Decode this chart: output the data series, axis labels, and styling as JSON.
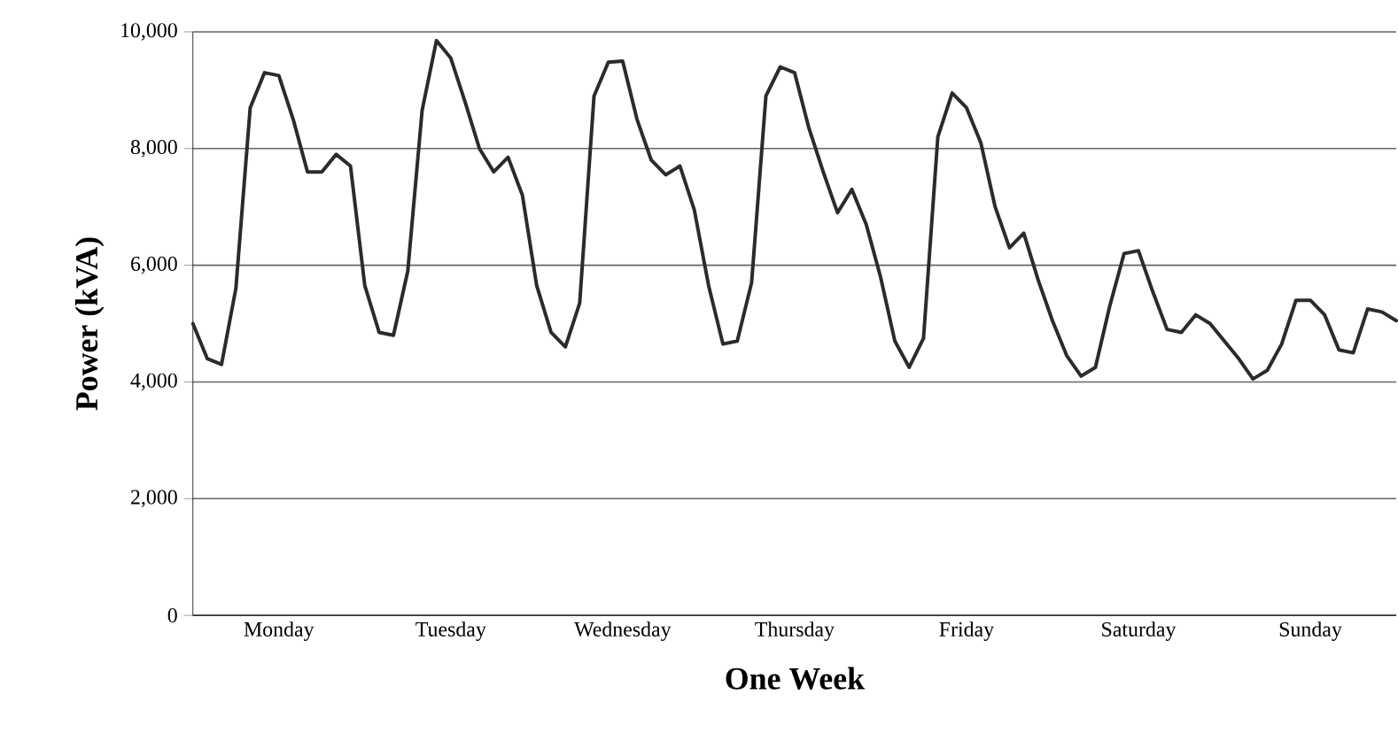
{
  "chart_data": {
    "type": "line",
    "xlabel": "One Week",
    "ylabel": "Power (kVA)",
    "categories": [
      null,
      null,
      null,
      null,
      null,
      null,
      "Monday",
      null,
      null,
      null,
      null,
      null,
      null,
      null,
      null,
      null,
      null,
      null,
      "Tuesday",
      null,
      null,
      null,
      null,
      null,
      null,
      null,
      null,
      null,
      null,
      null,
      "Wednesday",
      null,
      null,
      null,
      null,
      null,
      null,
      null,
      null,
      null,
      null,
      null,
      "Thursday",
      null,
      null,
      null,
      null,
      null,
      null,
      null,
      null,
      null,
      null,
      null,
      "Friday",
      null,
      null,
      null,
      null,
      null,
      null,
      null,
      null,
      null,
      null,
      null,
      "Saturday",
      null,
      null,
      null,
      null,
      null,
      null,
      null,
      null,
      null,
      null,
      null,
      "Sunday",
      null,
      null,
      null,
      null,
      null,
      null
    ],
    "ylim": [
      0,
      10000
    ],
    "yticks": [
      0,
      {
        "value": 2000,
        "label": "2,000"
      },
      {
        "value": 4000,
        "label": "4,000"
      },
      {
        "value": 6000,
        "label": "6,000"
      },
      {
        "value": 8000,
        "label": "8,000"
      },
      {
        "value": 10000,
        "label": "10,000"
      }
    ],
    "grid": "y",
    "marker": "none",
    "line_style": "solid",
    "series": [
      {
        "color": "#2b2b2b",
        "values": [
          5000,
          4400,
          4300,
          5600,
          8700,
          9300,
          9250,
          8500,
          7600,
          7600,
          7900,
          7700,
          5650,
          4850,
          4800,
          5900,
          8650,
          9850,
          9550,
          8800,
          8000,
          7600,
          7850,
          7200,
          5650,
          4850,
          4600,
          5350,
          8900,
          9480,
          9500,
          8500,
          7800,
          7550,
          7700,
          6950,
          5650,
          4650,
          4700,
          5700,
          8900,
          9400,
          9300,
          8350,
          7600,
          6900,
          7300,
          6700,
          5800,
          4700,
          4250,
          4750,
          8200,
          8950,
          8700,
          8100,
          7000,
          6300,
          6550,
          5750,
          5050,
          4450,
          4100,
          4250,
          5300,
          6200,
          6250,
          5550,
          4900,
          4850,
          5150,
          5000,
          4700,
          4400,
          4050,
          4200,
          4650,
          5400,
          5400,
          5150,
          4550,
          4500,
          5250,
          5200,
          5050
        ]
      }
    ]
  }
}
